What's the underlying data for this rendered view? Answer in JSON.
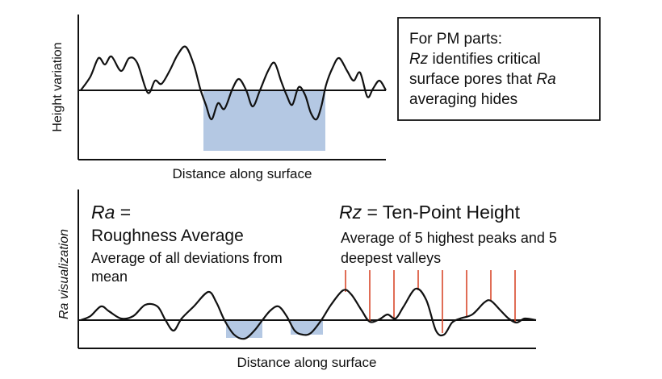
{
  "top_panel": {
    "y_label": "Height variation",
    "x_label": "Distance along surface"
  },
  "note": {
    "heading": "For PM parts:",
    "parts": [
      "Rz",
      "identifies critical surface pores that",
      "Ra",
      "averaging hides"
    ]
  },
  "bottom_panel": {
    "y_label": "Ra visualization",
    "x_label": "Distance along surface",
    "ra": {
      "symbol": "Ra",
      "equals": "=",
      "name": "Roughness Average",
      "description": "Average of all deviations from mean"
    },
    "rz": {
      "symbol": "Rz",
      "name": "= Ten-Point Height",
      "description": "Average of 5 highest peaks and 5 deepest valleys"
    }
  }
}
